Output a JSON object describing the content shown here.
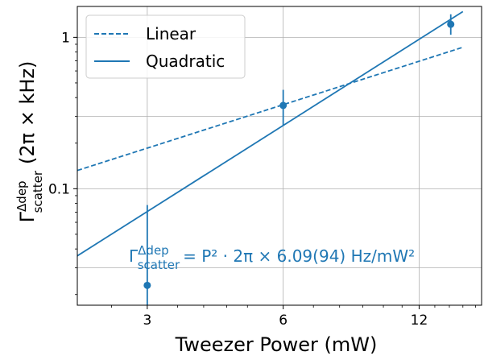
{
  "chart_data": {
    "type": "line",
    "xlabel": "Tweezer Power (mW)",
    "ylabel_main": "Γ",
    "ylabel_sup": "Δdep",
    "ylabel_sub": "scatter",
    "ylabel_units": "(2π × kHz)",
    "x_scale": "log",
    "y_scale": "log",
    "xlim": [
      2.1,
      16.5
    ],
    "ylim": [
      0.017,
      1.6
    ],
    "x_ticks": [
      3,
      6,
      12
    ],
    "x_tick_labels": [
      "3",
      "6",
      "12"
    ],
    "y_ticks": [
      0.1,
      1
    ],
    "y_tick_labels": [
      "0.1",
      "1"
    ],
    "grid": true,
    "legend_position": "top-left",
    "colors": {
      "series": "#1f77b4"
    },
    "series": [
      {
        "name": "Linear",
        "style": "dashed",
        "x": [
          2.1,
          15.0
        ],
        "y": [
          0.132,
          0.86
        ]
      },
      {
        "name": "Quadratic",
        "style": "solid",
        "x": [
          2.1,
          15.0
        ],
        "y": [
          0.036,
          1.48
        ]
      }
    ],
    "points": [
      {
        "x": 3.0,
        "y": 0.023,
        "y_err_low": 0.016,
        "y_err_high": 0.078
      },
      {
        "x": 6.0,
        "y": 0.355,
        "y_err_low": 0.26,
        "y_err_high": 0.45
      },
      {
        "x": 14.1,
        "y": 1.22,
        "y_err_low": 1.04,
        "y_err_high": 1.42
      }
    ],
    "annotation": {
      "gamma": "Γ",
      "sup": "Δdep",
      "sub": "scatter",
      "formula": "= P² · 2π × 6.09(94) Hz/mW²"
    }
  }
}
